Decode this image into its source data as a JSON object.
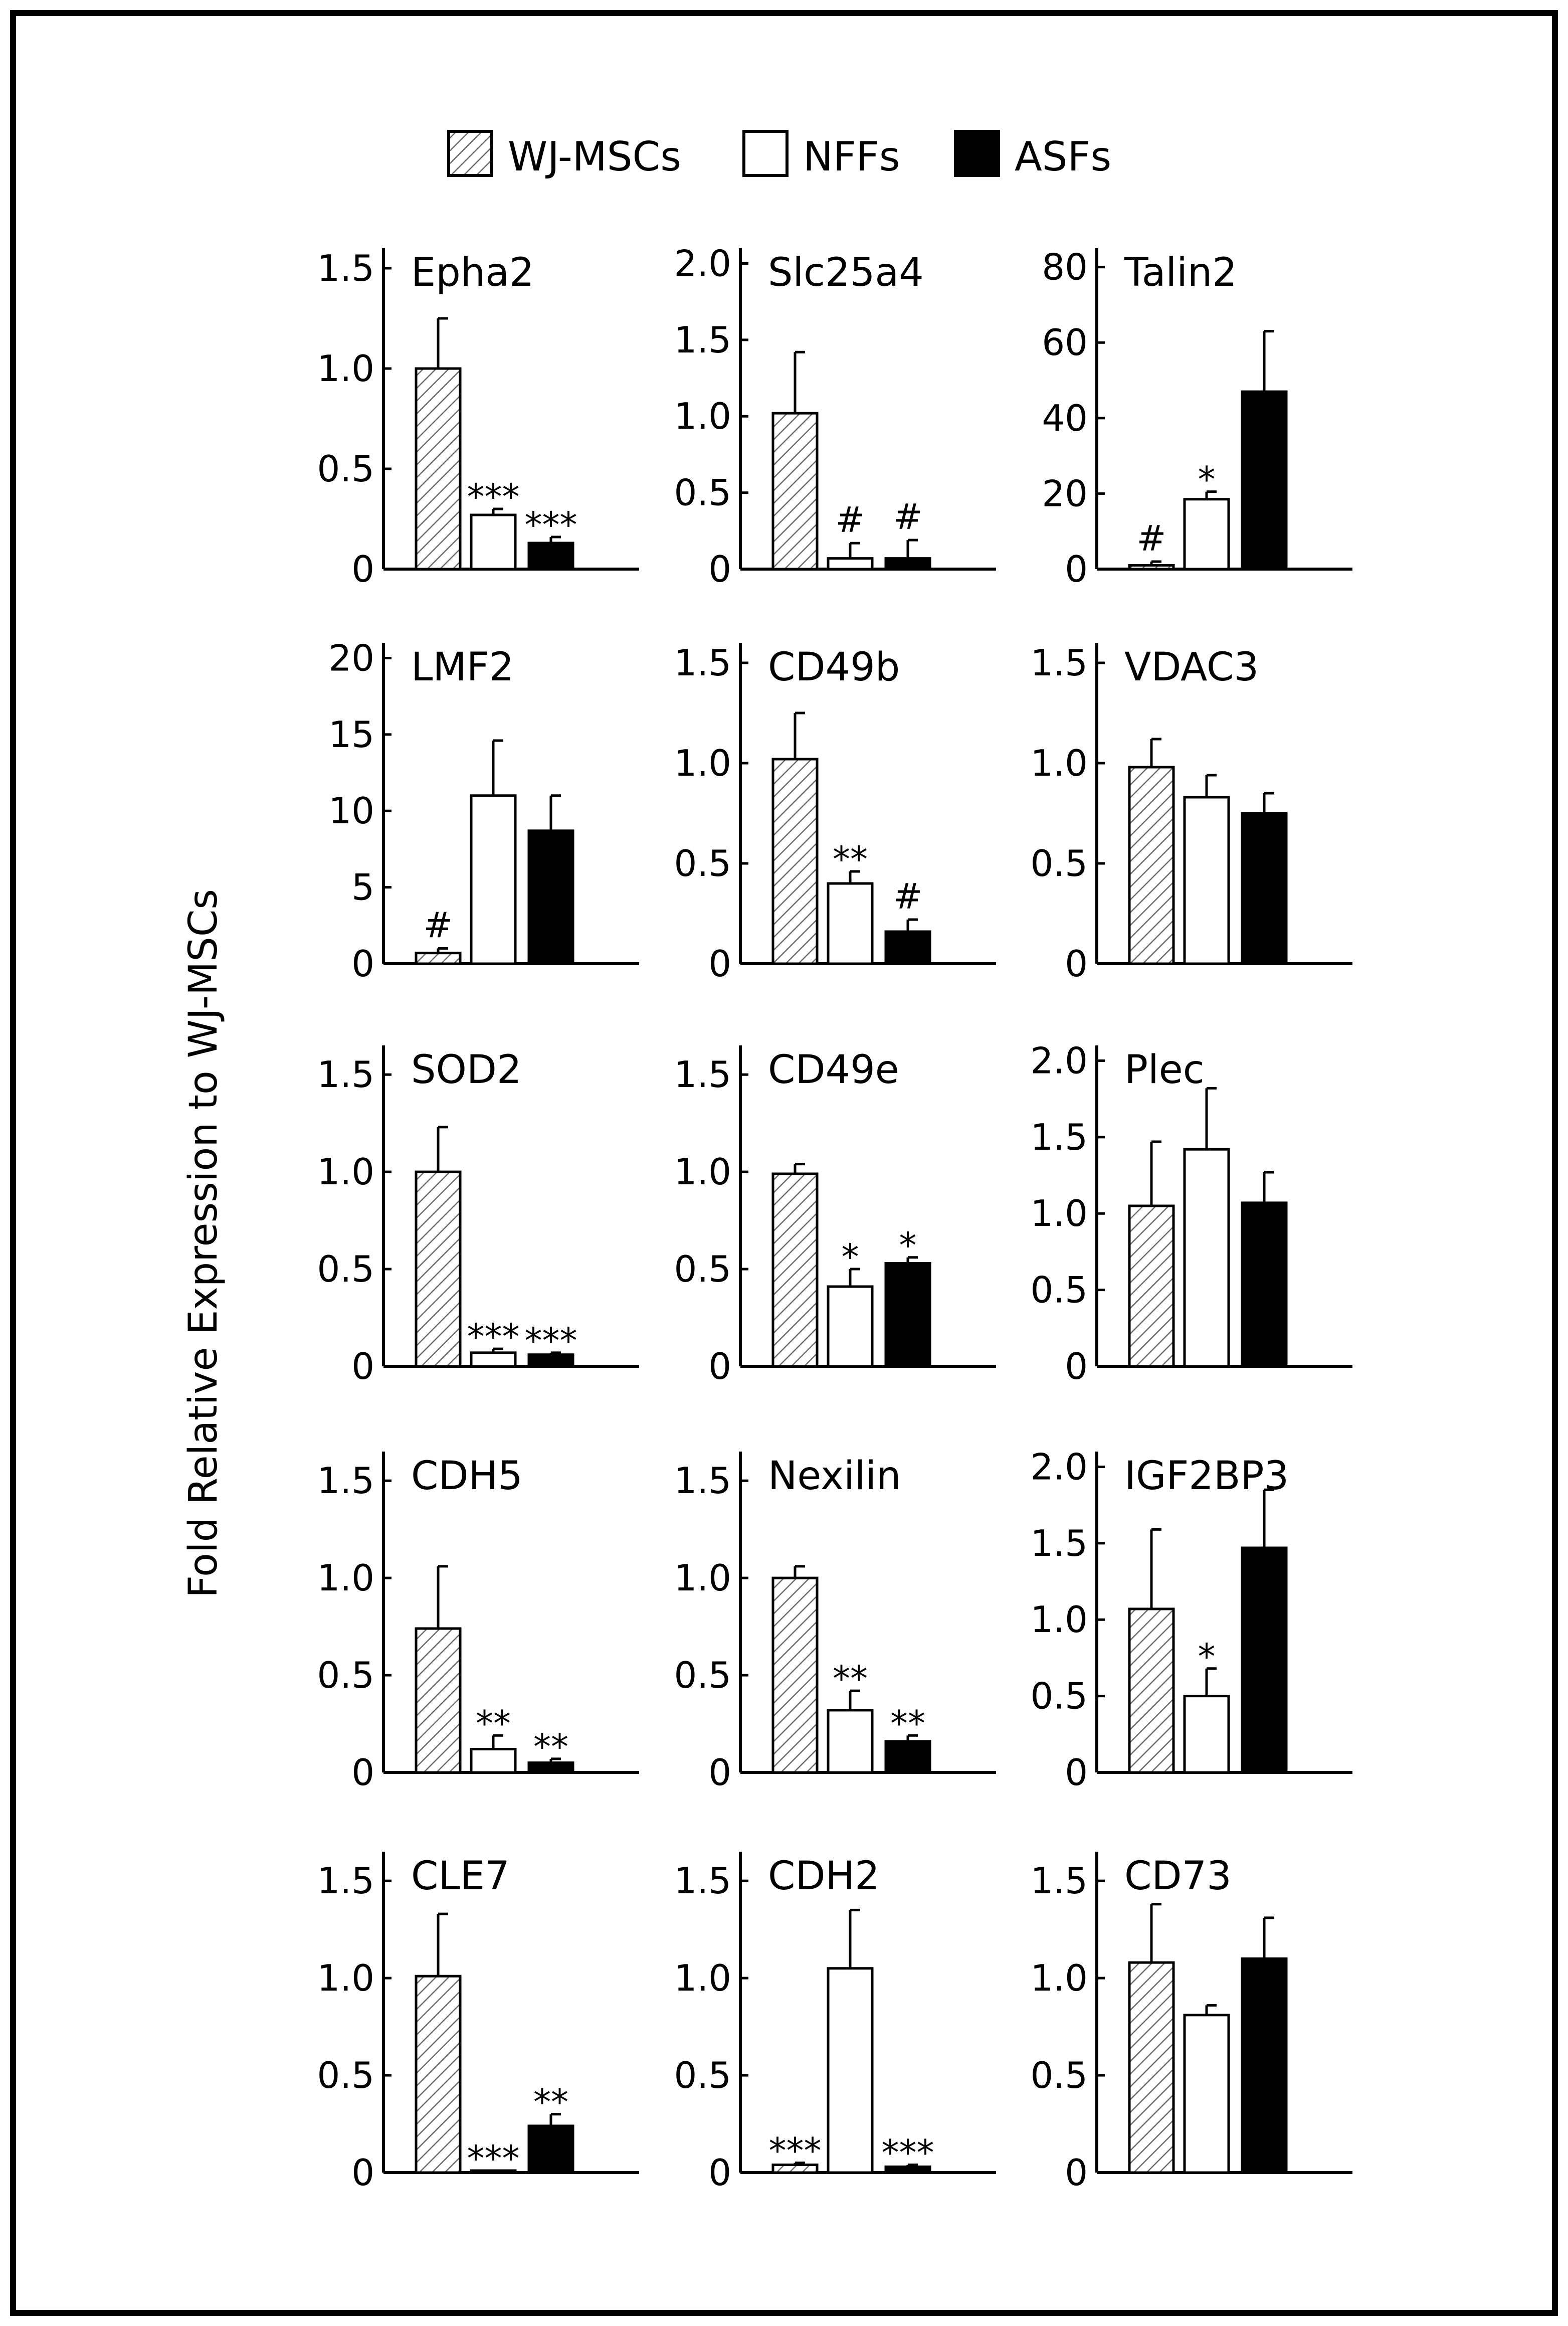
{
  "legend": [
    {
      "name": "WJ-MSCs",
      "fill": "hatch"
    },
    {
      "name": "NFFs",
      "fill": "#ffffff"
    },
    {
      "name": "ASFs",
      "fill": "#000000"
    }
  ],
  "chart_data": {
    "type": "bar",
    "ylabel": "Fold Relative Expression to WJ-MSCs",
    "categories": [
      "WJ-MSCs",
      "NFFs",
      "ASFs"
    ],
    "panels": [
      {
        "title": "Epha2",
        "ylim": [
          0,
          1.6
        ],
        "ticks": [
          0,
          0.5,
          1.0,
          1.5
        ],
        "tick_labels": [
          "0",
          "0.5",
          "1.0",
          "1.5"
        ],
        "values": [
          1.0,
          0.27,
          0.13
        ],
        "errors": [
          0.25,
          0.03,
          0.03
        ],
        "sig": [
          "",
          "***",
          "***"
        ]
      },
      {
        "title": "Slc25a4",
        "ylim": [
          0,
          2.1
        ],
        "ticks": [
          0,
          0.5,
          1.0,
          1.5,
          2.0
        ],
        "tick_labels": [
          "0",
          "0.5",
          "1.0",
          "1.5",
          "2.0"
        ],
        "values": [
          1.02,
          0.07,
          0.07
        ],
        "errors": [
          0.4,
          0.1,
          0.12
        ],
        "sig": [
          "",
          "#",
          "#"
        ]
      },
      {
        "title": "Talin2",
        "ylim": [
          0,
          85
        ],
        "ticks": [
          0,
          20,
          40,
          60,
          80
        ],
        "tick_labels": [
          "0",
          "20",
          "40",
          "60",
          "80"
        ],
        "values": [
          1,
          18.5,
          47
        ],
        "errors": [
          1,
          2,
          16
        ],
        "sig": [
          "#",
          "*",
          ""
        ]
      },
      {
        "title": "LMF2",
        "ylim": [
          0,
          21
        ],
        "ticks": [
          0,
          5,
          10,
          15,
          20
        ],
        "tick_labels": [
          "0",
          "5",
          "10",
          "15",
          "20"
        ],
        "values": [
          0.7,
          11,
          8.7
        ],
        "errors": [
          0.3,
          3.6,
          2.3
        ],
        "sig": [
          "#",
          "",
          ""
        ]
      },
      {
        "title": "CD49b",
        "ylim": [
          0,
          1.6
        ],
        "ticks": [
          0,
          0.5,
          1.0,
          1.5
        ],
        "tick_labels": [
          "0",
          "0.5",
          "1.0",
          "1.5"
        ],
        "values": [
          1.02,
          0.4,
          0.16
        ],
        "errors": [
          0.23,
          0.06,
          0.06
        ],
        "sig": [
          "",
          "**",
          "#"
        ]
      },
      {
        "title": "VDAC3",
        "ylim": [
          0,
          1.6
        ],
        "ticks": [
          0,
          0.5,
          1.0,
          1.5
        ],
        "tick_labels": [
          "0",
          "0.5",
          "1.0",
          "1.5"
        ],
        "values": [
          0.98,
          0.83,
          0.75
        ],
        "errors": [
          0.14,
          0.11,
          0.1
        ],
        "sig": [
          "",
          "",
          ""
        ]
      },
      {
        "title": "SOD2",
        "ylim": [
          0,
          1.65
        ],
        "ticks": [
          0,
          0.5,
          1.0,
          1.5
        ],
        "tick_labels": [
          "0",
          "0.5",
          "1.0",
          "1.5"
        ],
        "values": [
          1.0,
          0.07,
          0.06
        ],
        "errors": [
          0.23,
          0.02,
          0.01
        ],
        "sig": [
          "",
          "***",
          "***"
        ]
      },
      {
        "title": "CD49e",
        "ylim": [
          0,
          1.65
        ],
        "ticks": [
          0,
          0.5,
          1.0,
          1.5
        ],
        "tick_labels": [
          "0",
          "0.5",
          "1.0",
          "1.5"
        ],
        "values": [
          0.99,
          0.41,
          0.53
        ],
        "errors": [
          0.05,
          0.09,
          0.03
        ],
        "sig": [
          "",
          "*",
          "*"
        ]
      },
      {
        "title": "Plec",
        "ylim": [
          0,
          2.1
        ],
        "ticks": [
          0,
          0.5,
          1.0,
          1.5,
          2.0
        ],
        "tick_labels": [
          "0",
          "0.5",
          "1.0",
          "1.5",
          "2.0"
        ],
        "values": [
          1.05,
          1.42,
          1.07
        ],
        "errors": [
          0.42,
          0.4,
          0.2
        ],
        "sig": [
          "",
          "",
          ""
        ]
      },
      {
        "title": "CDH5",
        "ylim": [
          0,
          1.65
        ],
        "ticks": [
          0,
          0.5,
          1.0,
          1.5
        ],
        "tick_labels": [
          "0",
          "0.5",
          "1.0",
          "1.5"
        ],
        "values": [
          0.74,
          0.12,
          0.05
        ],
        "errors": [
          0.32,
          0.07,
          0.02
        ],
        "sig": [
          "",
          "**",
          "**"
        ]
      },
      {
        "title": "Nexilin",
        "ylim": [
          0,
          1.65
        ],
        "ticks": [
          0,
          0.5,
          1.0,
          1.5
        ],
        "tick_labels": [
          "0",
          "0.5",
          "1.0",
          "1.5"
        ],
        "values": [
          1.0,
          0.32,
          0.16
        ],
        "errors": [
          0.06,
          0.1,
          0.03
        ],
        "sig": [
          "",
          "**",
          "**"
        ]
      },
      {
        "title": "IGF2BP3",
        "ylim": [
          0,
          2.1
        ],
        "ticks": [
          0,
          0.5,
          1.0,
          1.5,
          2.0
        ],
        "tick_labels": [
          "0",
          "0.5",
          "1.0",
          "1.5",
          "2.0"
        ],
        "values": [
          1.07,
          0.5,
          1.47
        ],
        "errors": [
          0.52,
          0.18,
          0.38
        ],
        "sig": [
          "",
          "*",
          ""
        ]
      },
      {
        "title": "CLE7",
        "ylim": [
          0,
          1.65
        ],
        "ticks": [
          0,
          0.5,
          1.0,
          1.5
        ],
        "tick_labels": [
          "0",
          "0.5",
          "1.0",
          "1.5"
        ],
        "values": [
          1.01,
          0.01,
          0.24
        ],
        "errors": [
          0.32,
          0.0,
          0.06
        ],
        "sig": [
          "",
          "***",
          "**"
        ]
      },
      {
        "title": "CDH2",
        "ylim": [
          0,
          1.65
        ],
        "ticks": [
          0,
          0.5,
          1.0,
          1.5
        ],
        "tick_labels": [
          "0",
          "0.5",
          "1.0",
          "1.5"
        ],
        "values": [
          0.04,
          1.05,
          0.03
        ],
        "errors": [
          0.01,
          0.3,
          0.01
        ],
        "sig": [
          "***",
          "",
          "***"
        ]
      },
      {
        "title": "CD73",
        "ylim": [
          0,
          1.65
        ],
        "ticks": [
          0,
          0.5,
          1.0,
          1.5
        ],
        "tick_labels": [
          "0",
          "0.5",
          "1.0",
          "1.5"
        ],
        "values": [
          1.08,
          0.81,
          1.1
        ],
        "errors": [
          0.3,
          0.05,
          0.21
        ],
        "sig": [
          "",
          "",
          ""
        ]
      }
    ]
  }
}
